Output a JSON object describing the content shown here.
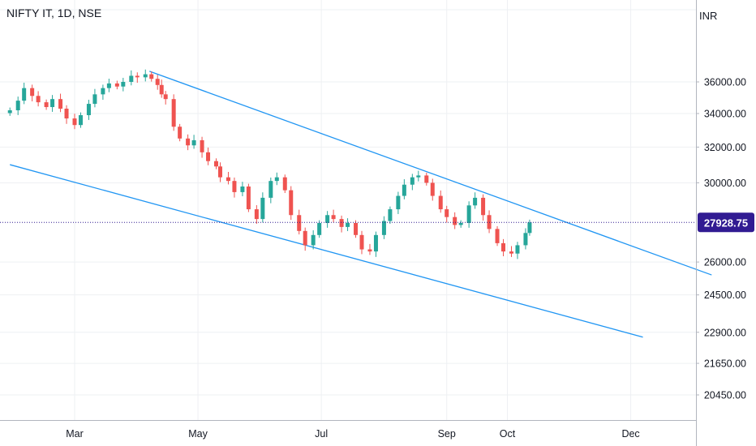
{
  "header": {
    "symbol": "NIFTY IT",
    "interval": "1D",
    "exchange": "NSE",
    "title_text": "NIFTY IT, 1D, NSE"
  },
  "currency": "INR",
  "colors": {
    "up": "#26a69a",
    "down": "#ef5350",
    "trendline": "#2196f3",
    "last_price_bg": "#311b92",
    "grid": "#eef0f3"
  },
  "chart_data": {
    "type": "candlestick",
    "symbol": "NIFTY IT",
    "interval": "1D",
    "currency": "INR",
    "y_axis_scale": "log",
    "y_ticks": [
      "36000.00",
      "34000.00",
      "32000.00",
      "30000.00",
      "26000.00",
      "24500.00",
      "22900.00",
      "21650.00",
      "20450.00"
    ],
    "y_tick_values": [
      36000,
      34000,
      32000,
      30000,
      26000,
      24500,
      22900,
      21650,
      20450
    ],
    "x_ticks": [
      "Mar",
      "May",
      "Jul",
      "Sep",
      "Oct",
      "Dec"
    ],
    "x_tick_dates": [
      "2022-03-01",
      "2022-05-01",
      "2022-07-01",
      "2022-09-01",
      "2022-10-01",
      "2022-12-01"
    ],
    "last_price": "27928.75",
    "series_close": [
      [
        "2022-01-28",
        34200
      ],
      [
        "2022-02-01",
        34800
      ],
      [
        "2022-02-04",
        35600
      ],
      [
        "2022-02-08",
        35100
      ],
      [
        "2022-02-11",
        34700
      ],
      [
        "2022-02-15",
        34400
      ],
      [
        "2022-02-18",
        34900
      ],
      [
        "2022-02-22",
        34300
      ],
      [
        "2022-02-25",
        33700
      ],
      [
        "2022-03-01",
        33300
      ],
      [
        "2022-03-04",
        33900
      ],
      [
        "2022-03-08",
        34600
      ],
      [
        "2022-03-11",
        35200
      ],
      [
        "2022-03-15",
        35600
      ],
      [
        "2022-03-18",
        35900
      ],
      [
        "2022-03-22",
        35700
      ],
      [
        "2022-03-25",
        36000
      ],
      [
        "2022-03-29",
        36400
      ],
      [
        "2022-04-01",
        36300
      ],
      [
        "2022-04-05",
        36500
      ],
      [
        "2022-04-08",
        36200
      ],
      [
        "2022-04-11",
        35800
      ],
      [
        "2022-04-13",
        35200
      ],
      [
        "2022-04-15",
        34900
      ],
      [
        "2022-04-19",
        33200
      ],
      [
        "2022-04-22",
        32500
      ],
      [
        "2022-04-26",
        32100
      ],
      [
        "2022-04-29",
        32400
      ],
      [
        "2022-05-03",
        31700
      ],
      [
        "2022-05-06",
        31200
      ],
      [
        "2022-05-10",
        30900
      ],
      [
        "2022-05-12",
        30300
      ],
      [
        "2022-05-16",
        30100
      ],
      [
        "2022-05-19",
        29500
      ],
      [
        "2022-05-23",
        29800
      ],
      [
        "2022-05-26",
        28600
      ],
      [
        "2022-05-30",
        28100
      ],
      [
        "2022-06-02",
        29200
      ],
      [
        "2022-06-06",
        30100
      ],
      [
        "2022-06-09",
        30300
      ],
      [
        "2022-06-13",
        29600
      ],
      [
        "2022-06-16",
        28300
      ],
      [
        "2022-06-20",
        27500
      ],
      [
        "2022-06-23",
        26800
      ],
      [
        "2022-06-27",
        27300
      ],
      [
        "2022-06-30",
        27900
      ],
      [
        "2022-07-04",
        28300
      ],
      [
        "2022-07-07",
        28100
      ],
      [
        "2022-07-11",
        27700
      ],
      [
        "2022-07-14",
        27900
      ],
      [
        "2022-07-18",
        27300
      ],
      [
        "2022-07-21",
        26600
      ],
      [
        "2022-07-25",
        26500
      ],
      [
        "2022-07-28",
        27300
      ],
      [
        "2022-08-01",
        28000
      ],
      [
        "2022-08-04",
        28600
      ],
      [
        "2022-08-08",
        29300
      ],
      [
        "2022-08-11",
        29900
      ],
      [
        "2022-08-15",
        30300
      ],
      [
        "2022-08-18",
        30400
      ],
      [
        "2022-08-22",
        30000
      ],
      [
        "2022-08-25",
        29300
      ],
      [
        "2022-08-29",
        28600
      ],
      [
        "2022-09-01",
        28200
      ],
      [
        "2022-09-05",
        27800
      ],
      [
        "2022-09-08",
        27900
      ],
      [
        "2022-09-12",
        28800
      ],
      [
        "2022-09-15",
        29200
      ],
      [
        "2022-09-19",
        28300
      ],
      [
        "2022-09-22",
        27600
      ],
      [
        "2022-09-26",
        26900
      ],
      [
        "2022-09-29",
        26500
      ],
      [
        "2022-10-03",
        26400
      ],
      [
        "2022-10-06",
        26800
      ],
      [
        "2022-10-10",
        27400
      ],
      [
        "2022-10-12",
        27929
      ]
    ],
    "trendlines": [
      {
        "start": [
          "2022-04-07",
          36700
        ],
        "end": [
          "2023-01-10",
          25400
        ]
      },
      {
        "start": [
          "2022-01-28",
          31000
        ],
        "end": [
          "2022-12-07",
          22700
        ]
      }
    ]
  }
}
